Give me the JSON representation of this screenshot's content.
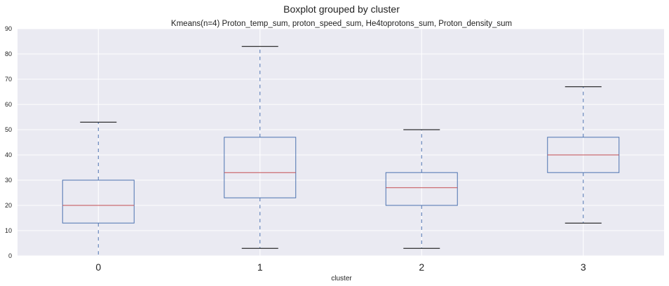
{
  "chart_data": {
    "type": "boxplot",
    "suptitle": "Boxplot grouped by cluster",
    "title": "Kmeans(n=4) Proton_temp_sum, proton_speed_sum, He4toprotons_sum, Proton_density_sum",
    "xlabel": "cluster",
    "ylabel": "",
    "categories": [
      "0",
      "1",
      "2",
      "3"
    ],
    "ylim": [
      0,
      90
    ],
    "yticks": [
      "0",
      "10",
      "20",
      "30",
      "40",
      "50",
      "60",
      "70",
      "80",
      "90"
    ],
    "grid": true,
    "boxes": [
      {
        "category": "0",
        "whisker_low": 0,
        "q1": 13,
        "median": 20,
        "q3": 30,
        "whisker_high": 53
      },
      {
        "category": "1",
        "whisker_low": 3,
        "q1": 23,
        "median": 33,
        "q3": 47,
        "whisker_high": 83
      },
      {
        "category": "2",
        "whisker_low": 3,
        "q1": 20,
        "median": 27,
        "q3": 33,
        "whisker_high": 50
      },
      {
        "category": "3",
        "whisker_low": 13,
        "q1": 33,
        "median": 40,
        "q3": 47,
        "whisker_high": 67
      }
    ],
    "colors": {
      "background": "#eaeaf2",
      "grid": "#ffffff",
      "box": "#4c72b0",
      "median": "#c44e52",
      "cap": "#000000"
    }
  }
}
